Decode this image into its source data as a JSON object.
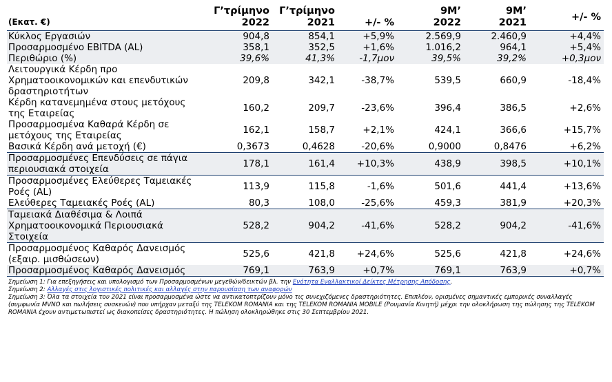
{
  "header": {
    "label": "(Εκατ. €)",
    "columns": [
      {
        "line1": "Γ’τρίμηνο",
        "line2": "2022"
      },
      {
        "line1": "Γ’τρίμηνο",
        "line2": "2021"
      },
      {
        "line1": "+/- %",
        "line2": ""
      },
      {
        "line1": "9Μ’",
        "line2": "2022"
      },
      {
        "line1": "9Μ’",
        "line2": "2021"
      },
      {
        "line1": "+/- %",
        "line2": ""
      }
    ]
  },
  "rows": [
    {
      "label": "Κύκλος Εργασιών",
      "values": [
        "904,8",
        "854,1",
        "+5,9%",
        "2.569,9",
        "2.460,9",
        "+4,4%"
      ],
      "shaded": true
    },
    {
      "label": "Προσαρμοσμένο EBITDA (AL)",
      "values": [
        "358,1",
        "352,5",
        "+1,6%",
        "1.016,2",
        "964,1",
        "+5,4%"
      ],
      "shaded": true
    },
    {
      "label": "Περιθώριο (%)",
      "values": [
        "39,6%",
        "41,3%",
        "-1,7μον",
        "39,5%",
        "39,2%",
        "+0,3μον"
      ],
      "shaded": true,
      "italic": true
    },
    {
      "label": "Λειτουργικά Κέρδη προ Χρηματοοικονομικών και επενδυτικών δραστηριοτήτων",
      "values": [
        "209,8",
        "342,1",
        "-38,7%",
        "539,5",
        "660,9",
        "-18,4%"
      ],
      "shaded": false
    },
    {
      "label": "Κέρδη κατανεμημένα στους μετόχους της Εταιρείας",
      "values": [
        "160,2",
        "209,7",
        "-23,6%",
        "396,4",
        "386,5",
        "+2,6%"
      ],
      "shaded": false
    },
    {
      "label": "Προσαρμοσμένα Καθαρά Κέρδη σε μετόχους της Εταιρείας",
      "values": [
        "162,1",
        "158,7",
        "+2,1%",
        "424,1",
        "366,6",
        "+15,7%"
      ],
      "shaded": false
    },
    {
      "label": "Βασικά Κέρδη ανά μετοχή (€)",
      "values": [
        "0,3673",
        "0,4628",
        "-20,6%",
        "0,9000",
        "0,8476",
        "+6,2%"
      ],
      "shaded": false
    },
    {
      "label": "Προσαρμοσμένες Επενδύσεις σε πάγια περιουσιακά στοιχεία",
      "values": [
        "178,1",
        "161,4",
        "+10,3%",
        "438,9",
        "398,5",
        "+10,1%"
      ],
      "shaded": true
    },
    {
      "label": "Προσαρμοσμένες Ελεύθερες Ταμειακές Ροές (AL)",
      "values": [
        "113,9",
        "115,8",
        "-1,6%",
        "501,6",
        "441,4",
        "+13,6%"
      ],
      "shaded": false
    },
    {
      "label": "Ελεύθερες Ταμειακές Ροές (AL)",
      "values": [
        "80,3",
        "108,0",
        "-25,6%",
        "459,3",
        "381,9",
        "+20,3%"
      ],
      "shaded": false
    },
    {
      "label": "Ταμειακά Διαθέσιμα & Λοιπά Χρηματοοικονομικά Περιουσιακά Στοιχεία",
      "values": [
        "528,2",
        "904,2",
        "-41,6%",
        "528,2",
        "904,2",
        "-41,6%"
      ],
      "shaded": true
    },
    {
      "label": "Προσαρμοσμένος Καθαρός Δανεισμός (εξαιρ. μισθώσεων)",
      "values": [
        "525,6",
        "421,8",
        "+24,6%",
        "525,6",
        "421,8",
        "+24,6%"
      ],
      "shaded": false
    },
    {
      "label": "Προσαρμοσμένος Καθαρός Δανεισμός",
      "values": [
        "769,1",
        "763,9",
        "+0,7%",
        "769,1",
        "763,9",
        "+0,7%"
      ],
      "shaded": true
    }
  ],
  "notes": {
    "n1": {
      "pre": "Σημείωση 1: Για επεξηγήσεις και υπολογισμό των Προσαρμοσμένων μεγεθών/δεικτών βλ. την ",
      "link": "Ενότητα Εναλλακτικοί Δείκτες Μέτρησης Απόδοσης",
      "post": "."
    },
    "n2": {
      "pre": "Σημείωση 2: ",
      "link": "Αλλαγές στις λογιστικές πολιτικές και αλλαγές στην παρουσίαση των αναφορών",
      "post": ""
    },
    "n3": "Σημείωση 3: Όλα τα στοιχεία του 2021 είναι προσαρμοσμένα ώστε να αντικατοπτρίζουν μόνο τις συνεχιζόμενες δραστηριότητες. Επιπλέον, ορισμένες σημαντικές εμπορικές συναλλαγές (συμφωνία MVNO και πωλήσεις συσκευών) που υπήρχαν μεταξύ της TELEKOM ROMANIA και της TELEKOM ROMANIA MOBILE (Ρουμανία Κινητή) μέχρι την ολοκλήρωση της πώλησης της TELEKOM ROMANIA έχουν αντιμετωπιστεί ως διακοπείσες δραστηριότητες. Η πώληση ολοκληρώθηκε στις 30 Σεπτεμβρίου 2021."
  }
}
